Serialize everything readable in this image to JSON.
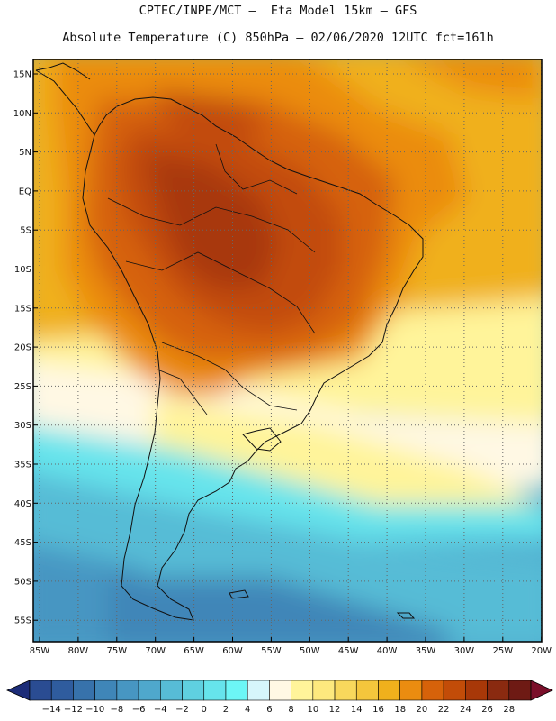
{
  "header": {
    "title_line1": "CPTEC/INPE/MCT –  Eta Model 15km – GFS",
    "title_line2": "Absolute Temperature (C) 850hPa – 02/06/2020 12UTC fct=161h"
  },
  "map": {
    "lat_labels": [
      "15N",
      "10N",
      "5N",
      "EQ",
      "5S",
      "10S",
      "15S",
      "20S",
      "25S",
      "30S",
      "35S",
      "40S",
      "45S",
      "50S",
      "55S"
    ],
    "lon_labels": [
      "85W",
      "80W",
      "75W",
      "70W",
      "65W",
      "60W",
      "55W",
      "50W",
      "45W",
      "40W",
      "35W",
      "30W",
      "25W",
      "20W"
    ]
  },
  "colorbar": {
    "labels": [
      "-14",
      "-12",
      "-10",
      "-8",
      "-6",
      "-4",
      "-2",
      "0",
      "2",
      "4",
      "6",
      "8",
      "10",
      "12",
      "14",
      "16",
      "18",
      "20",
      "22",
      "24",
      "26",
      "28"
    ],
    "colors": [
      "#2a4c92",
      "#2f5c9e",
      "#3772ab",
      "#3f86b8",
      "#4796c2",
      "#4fa8cc",
      "#57bcd6",
      "#5fd0e0",
      "#66e4ec",
      "#6cf6f6",
      "#d6f6fb",
      "#fff8e4",
      "#fff49a",
      "#fde97e",
      "#f8d85c",
      "#f4c63c",
      "#f0b01c",
      "#eb8c10",
      "#d6620a",
      "#c24c08",
      "#a83808",
      "#8a2a10",
      "#6e1a14"
    ],
    "left_arrow_color": "#1c2c78",
    "right_arrow_color": "#7a0f2a"
  }
}
